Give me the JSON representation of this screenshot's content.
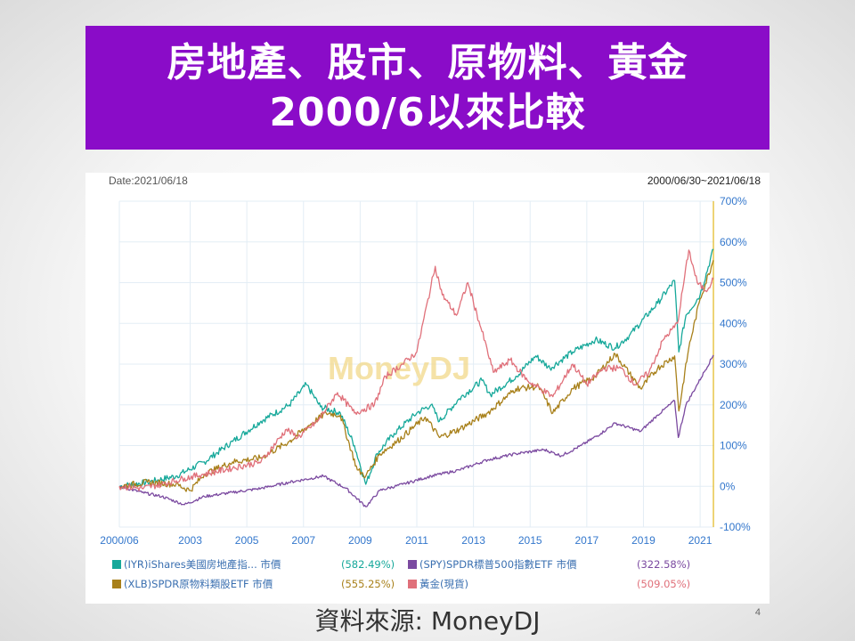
{
  "slide": {
    "title_line1": "房地產、股市、原物料、黃金",
    "title_line2": "2000/6以來比較",
    "source": "資料來源: MoneyDJ",
    "page_number": "4"
  },
  "chart_data": {
    "type": "line",
    "date_label": "Date:2021/06/18",
    "range_label": "2000/06/30~2021/06/18",
    "watermark": "MoneyDJ",
    "y_unit": "%",
    "ylim": [
      -100,
      700
    ],
    "y_ticks": [
      "700%",
      "600%",
      "500%",
      "400%",
      "300%",
      "200%",
      "100%",
      "0%",
      "-100%"
    ],
    "x_ticks": [
      "2000/06",
      "2003",
      "2005",
      "2007",
      "2009",
      "2011",
      "2013",
      "2015",
      "2017",
      "2019",
      "2021"
    ],
    "grid": true,
    "legend_position": "bottom",
    "series": [
      {
        "name": "(IYR)iShares美國房地產指... 市價",
        "final": "(582.49%)",
        "color": "#16a89a",
        "points": [
          [
            2000.5,
            0
          ],
          [
            2001.5,
            10
          ],
          [
            2002.5,
            25
          ],
          [
            2003.5,
            60
          ],
          [
            2004.5,
            110
          ],
          [
            2005.5,
            160
          ],
          [
            2006.5,
            200
          ],
          [
            2007.1,
            250
          ],
          [
            2007.6,
            195
          ],
          [
            2008.3,
            180
          ],
          [
            2008.8,
            100
          ],
          [
            2009.2,
            5
          ],
          [
            2009.6,
            80
          ],
          [
            2010.2,
            130
          ],
          [
            2011.0,
            180
          ],
          [
            2011.5,
            200
          ],
          [
            2011.8,
            160
          ],
          [
            2012.5,
            215
          ],
          [
            2013.3,
            260
          ],
          [
            2013.6,
            225
          ],
          [
            2014.5,
            270
          ],
          [
            2015.2,
            320
          ],
          [
            2015.7,
            290
          ],
          [
            2016.5,
            330
          ],
          [
            2017.3,
            360
          ],
          [
            2018.0,
            340
          ],
          [
            2018.5,
            370
          ],
          [
            2019.5,
            450
          ],
          [
            2020.1,
            505
          ],
          [
            2020.25,
            330
          ],
          [
            2020.5,
            420
          ],
          [
            2021.0,
            470
          ],
          [
            2021.47,
            582
          ]
        ]
      },
      {
        "name": "(SPY)SPDR標普500指數ETF 市價",
        "final": "(322.58%)",
        "color": "#7b4aa0",
        "points": [
          [
            2000.5,
            0
          ],
          [
            2001.3,
            -15
          ],
          [
            2002.0,
            -25
          ],
          [
            2002.8,
            -45
          ],
          [
            2003.5,
            -25
          ],
          [
            2004.5,
            -15
          ],
          [
            2005.5,
            -5
          ],
          [
            2006.5,
            10
          ],
          [
            2007.7,
            25
          ],
          [
            2008.5,
            -5
          ],
          [
            2009.2,
            -50
          ],
          [
            2009.7,
            -10
          ],
          [
            2010.5,
            5
          ],
          [
            2011.5,
            25
          ],
          [
            2012.5,
            40
          ],
          [
            2013.5,
            65
          ],
          [
            2014.5,
            80
          ],
          [
            2015.5,
            90
          ],
          [
            2016.1,
            75
          ],
          [
            2016.8,
            100
          ],
          [
            2017.5,
            130
          ],
          [
            2018.0,
            155
          ],
          [
            2018.9,
            135
          ],
          [
            2019.5,
            175
          ],
          [
            2020.1,
            210
          ],
          [
            2020.23,
            120
          ],
          [
            2020.5,
            200
          ],
          [
            2020.9,
            250
          ],
          [
            2021.47,
            322
          ]
        ]
      },
      {
        "name": "(XLB)SPDR原物料類股ETF 市價",
        "final": "(555.25%)",
        "color": "#a8801a",
        "points": [
          [
            2000.5,
            0
          ],
          [
            2001.5,
            10
          ],
          [
            2002.5,
            5
          ],
          [
            2003.0,
            -10
          ],
          [
            2003.5,
            30
          ],
          [
            2004.5,
            60
          ],
          [
            2005.5,
            70
          ],
          [
            2006.5,
            110
          ],
          [
            2007.2,
            150
          ],
          [
            2007.8,
            180
          ],
          [
            2008.3,
            175
          ],
          [
            2008.9,
            40
          ],
          [
            2009.2,
            25
          ],
          [
            2009.7,
            80
          ],
          [
            2010.3,
            110
          ],
          [
            2011.3,
            170
          ],
          [
            2011.8,
            120
          ],
          [
            2012.5,
            140
          ],
          [
            2013.5,
            180
          ],
          [
            2014.5,
            240
          ],
          [
            2015.3,
            245
          ],
          [
            2015.8,
            180
          ],
          [
            2016.5,
            240
          ],
          [
            2017.3,
            270
          ],
          [
            2018.0,
            325
          ],
          [
            2018.9,
            240
          ],
          [
            2019.5,
            290
          ],
          [
            2020.1,
            320
          ],
          [
            2020.25,
            185
          ],
          [
            2020.6,
            340
          ],
          [
            2021.0,
            460
          ],
          [
            2021.47,
            555
          ]
        ]
      },
      {
        "name": "黃金(現貨)",
        "final": "(509.05%)",
        "color": "#e0707a",
        "points": [
          [
            2000.5,
            0
          ],
          [
            2001.3,
            -5
          ],
          [
            2002.0,
            5
          ],
          [
            2002.8,
            20
          ],
          [
            2003.5,
            30
          ],
          [
            2004.5,
            45
          ],
          [
            2005.5,
            60
          ],
          [
            2006.4,
            140
          ],
          [
            2006.8,
            120
          ],
          [
            2007.5,
            160
          ],
          [
            2008.2,
            230
          ],
          [
            2008.8,
            180
          ],
          [
            2009.5,
            200
          ],
          [
            2009.9,
            270
          ],
          [
            2010.5,
            300
          ],
          [
            2011.0,
            330
          ],
          [
            2011.65,
            540
          ],
          [
            2011.9,
            470
          ],
          [
            2012.4,
            420
          ],
          [
            2012.8,
            500
          ],
          [
            2013.3,
            380
          ],
          [
            2013.7,
            280
          ],
          [
            2014.3,
            310
          ],
          [
            2014.9,
            260
          ],
          [
            2015.8,
            220
          ],
          [
            2016.5,
            300
          ],
          [
            2017.0,
            250
          ],
          [
            2017.6,
            290
          ],
          [
            2018.2,
            290
          ],
          [
            2018.7,
            250
          ],
          [
            2019.2,
            280
          ],
          [
            2019.7,
            360
          ],
          [
            2020.2,
            400
          ],
          [
            2020.6,
            580
          ],
          [
            2020.9,
            500
          ],
          [
            2021.2,
            480
          ],
          [
            2021.47,
            509
          ]
        ]
      }
    ]
  }
}
